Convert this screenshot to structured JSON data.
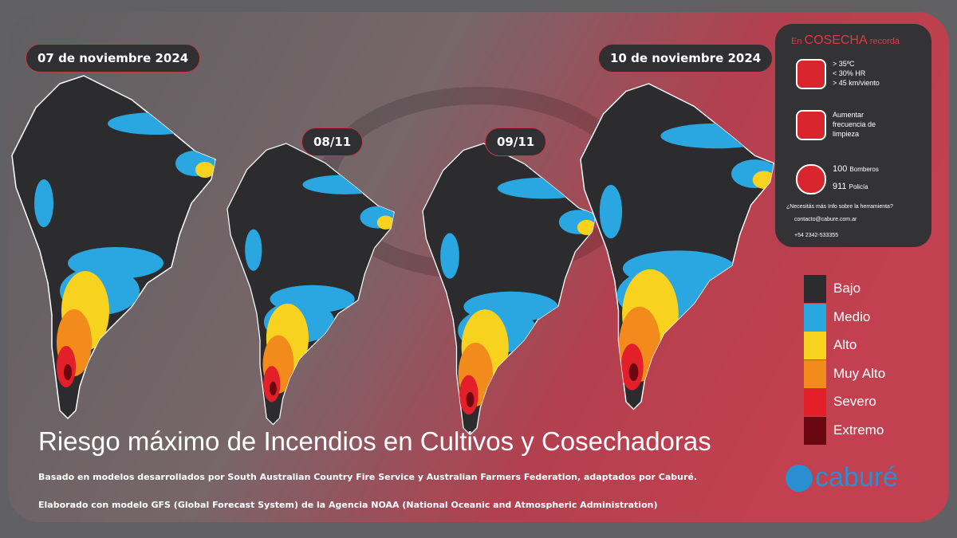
{
  "dates": [
    "07 de noviembre 2024",
    "08/11",
    "09/11",
    "10 de noviembre 2024"
  ],
  "reminder": {
    "prefix": "En",
    "title": "COSECHA",
    "suffix": "recordá",
    "conditions": [
      "> 35ºC",
      "< 30% HR",
      "> 45 km/viento"
    ],
    "cleaning": "Aumentar frecuencia de limpieza",
    "phones": [
      {
        "number": "100",
        "label": "Bomberos"
      },
      {
        "number": "911",
        "label": "Policía"
      }
    ],
    "info_question": "¿Necesitás más Info sobre la herramienta?",
    "email": "contacto@cabure.com.ar",
    "phone": "+54 2342-533355"
  },
  "legend": [
    {
      "label": "Bajo",
      "color": "#2c2c2e"
    },
    {
      "label": "Medio",
      "color": "#2aa7e0"
    },
    {
      "label": "Alto",
      "color": "#f7d21e"
    },
    {
      "label": "Muy Alto",
      "color": "#f28a1c"
    },
    {
      "label": "Severo",
      "color": "#e3202a"
    },
    {
      "label": "Extremo",
      "color": "#6b0710"
    }
  ],
  "title": "Riesgo máximo de Incendios en Cultivos y Cosechadoras",
  "notes": [
    "Basado en modelos desarrollados por South Australian Country Fire Service y Australian Farmers Federation, adaptados por Caburé.",
    "Elaborado con modelo GFS (Global Forecast System) de la Agencia NOAA (National Oceanic and Atmospheric Administration)"
  ],
  "logo": "caburé"
}
